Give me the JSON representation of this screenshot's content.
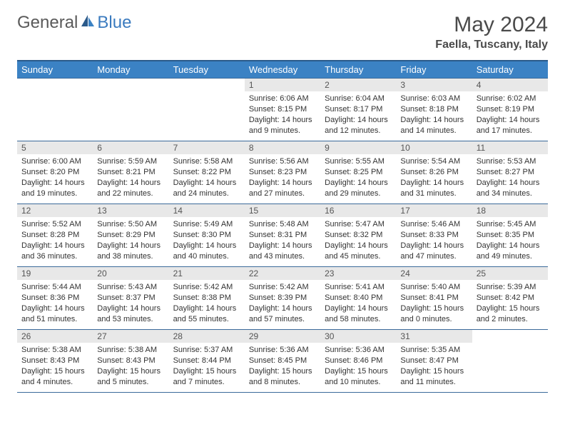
{
  "logo": {
    "text1": "General",
    "text2": "Blue"
  },
  "title": "May 2024",
  "location": "Faella, Tuscany, Italy",
  "weekdays": [
    "Sunday",
    "Monday",
    "Tuesday",
    "Wednesday",
    "Thursday",
    "Friday",
    "Saturday"
  ],
  "colors": {
    "header_bg": "#3b82c4",
    "header_border": "#2b5a8a",
    "cell_border": "#3b6a9a",
    "daynum_bg": "#e8e8e8",
    "logo_gray": "#5a5a5a",
    "logo_blue": "#3b7bbf"
  },
  "weeks": [
    [
      null,
      null,
      null,
      {
        "d": "1",
        "sr": "6:06 AM",
        "ss": "8:15 PM",
        "dl": "14 hours and 9 minutes."
      },
      {
        "d": "2",
        "sr": "6:04 AM",
        "ss": "8:17 PM",
        "dl": "14 hours and 12 minutes."
      },
      {
        "d": "3",
        "sr": "6:03 AM",
        "ss": "8:18 PM",
        "dl": "14 hours and 14 minutes."
      },
      {
        "d": "4",
        "sr": "6:02 AM",
        "ss": "8:19 PM",
        "dl": "14 hours and 17 minutes."
      }
    ],
    [
      {
        "d": "5",
        "sr": "6:00 AM",
        "ss": "8:20 PM",
        "dl": "14 hours and 19 minutes."
      },
      {
        "d": "6",
        "sr": "5:59 AM",
        "ss": "8:21 PM",
        "dl": "14 hours and 22 minutes."
      },
      {
        "d": "7",
        "sr": "5:58 AM",
        "ss": "8:22 PM",
        "dl": "14 hours and 24 minutes."
      },
      {
        "d": "8",
        "sr": "5:56 AM",
        "ss": "8:23 PM",
        "dl": "14 hours and 27 minutes."
      },
      {
        "d": "9",
        "sr": "5:55 AM",
        "ss": "8:25 PM",
        "dl": "14 hours and 29 minutes."
      },
      {
        "d": "10",
        "sr": "5:54 AM",
        "ss": "8:26 PM",
        "dl": "14 hours and 31 minutes."
      },
      {
        "d": "11",
        "sr": "5:53 AM",
        "ss": "8:27 PM",
        "dl": "14 hours and 34 minutes."
      }
    ],
    [
      {
        "d": "12",
        "sr": "5:52 AM",
        "ss": "8:28 PM",
        "dl": "14 hours and 36 minutes."
      },
      {
        "d": "13",
        "sr": "5:50 AM",
        "ss": "8:29 PM",
        "dl": "14 hours and 38 minutes."
      },
      {
        "d": "14",
        "sr": "5:49 AM",
        "ss": "8:30 PM",
        "dl": "14 hours and 40 minutes."
      },
      {
        "d": "15",
        "sr": "5:48 AM",
        "ss": "8:31 PM",
        "dl": "14 hours and 43 minutes."
      },
      {
        "d": "16",
        "sr": "5:47 AM",
        "ss": "8:32 PM",
        "dl": "14 hours and 45 minutes."
      },
      {
        "d": "17",
        "sr": "5:46 AM",
        "ss": "8:33 PM",
        "dl": "14 hours and 47 minutes."
      },
      {
        "d": "18",
        "sr": "5:45 AM",
        "ss": "8:35 PM",
        "dl": "14 hours and 49 minutes."
      }
    ],
    [
      {
        "d": "19",
        "sr": "5:44 AM",
        "ss": "8:36 PM",
        "dl": "14 hours and 51 minutes."
      },
      {
        "d": "20",
        "sr": "5:43 AM",
        "ss": "8:37 PM",
        "dl": "14 hours and 53 minutes."
      },
      {
        "d": "21",
        "sr": "5:42 AM",
        "ss": "8:38 PM",
        "dl": "14 hours and 55 minutes."
      },
      {
        "d": "22",
        "sr": "5:42 AM",
        "ss": "8:39 PM",
        "dl": "14 hours and 57 minutes."
      },
      {
        "d": "23",
        "sr": "5:41 AM",
        "ss": "8:40 PM",
        "dl": "14 hours and 58 minutes."
      },
      {
        "d": "24",
        "sr": "5:40 AM",
        "ss": "8:41 PM",
        "dl": "15 hours and 0 minutes."
      },
      {
        "d": "25",
        "sr": "5:39 AM",
        "ss": "8:42 PM",
        "dl": "15 hours and 2 minutes."
      }
    ],
    [
      {
        "d": "26",
        "sr": "5:38 AM",
        "ss": "8:43 PM",
        "dl": "15 hours and 4 minutes."
      },
      {
        "d": "27",
        "sr": "5:38 AM",
        "ss": "8:43 PM",
        "dl": "15 hours and 5 minutes."
      },
      {
        "d": "28",
        "sr": "5:37 AM",
        "ss": "8:44 PM",
        "dl": "15 hours and 7 minutes."
      },
      {
        "d": "29",
        "sr": "5:36 AM",
        "ss": "8:45 PM",
        "dl": "15 hours and 8 minutes."
      },
      {
        "d": "30",
        "sr": "5:36 AM",
        "ss": "8:46 PM",
        "dl": "15 hours and 10 minutes."
      },
      {
        "d": "31",
        "sr": "5:35 AM",
        "ss": "8:47 PM",
        "dl": "15 hours and 11 minutes."
      },
      null
    ]
  ],
  "labels": {
    "sunrise": "Sunrise:",
    "sunset": "Sunset:",
    "daylight": "Daylight:"
  }
}
